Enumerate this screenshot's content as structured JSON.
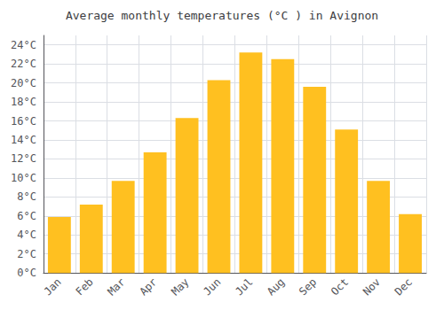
{
  "chart_data": {
    "type": "bar",
    "title": "Average monthly temperatures (°C ) in Avignon",
    "categories": [
      "Jan",
      "Feb",
      "Mar",
      "Apr",
      "May",
      "Jun",
      "Jul",
      "Aug",
      "Sep",
      "Oct",
      "Nov",
      "Dec"
    ],
    "values": [
      5.9,
      7.2,
      9.7,
      12.7,
      16.3,
      20.3,
      23.2,
      22.5,
      19.6,
      15.1,
      9.7,
      6.2
    ],
    "color": "#FFC020",
    "ylim": [
      0,
      25
    ],
    "yticks": [
      {
        "value": 0,
        "label": "0°C"
      },
      {
        "value": 2,
        "label": "2°C"
      },
      {
        "value": 4,
        "label": "4°C"
      },
      {
        "value": 6,
        "label": "6°C"
      },
      {
        "value": 8,
        "label": "8°C"
      },
      {
        "value": 10,
        "label": "10°C"
      },
      {
        "value": 12,
        "label": "12°C"
      },
      {
        "value": 14,
        "label": "14°C"
      },
      {
        "value": 16,
        "label": "16°C"
      },
      {
        "value": 18,
        "label": "18°C"
      },
      {
        "value": 20,
        "label": "20°C"
      },
      {
        "value": 22,
        "label": "22°C"
      },
      {
        "value": 24,
        "label": "24°C"
      }
    ],
    "grid": true
  }
}
